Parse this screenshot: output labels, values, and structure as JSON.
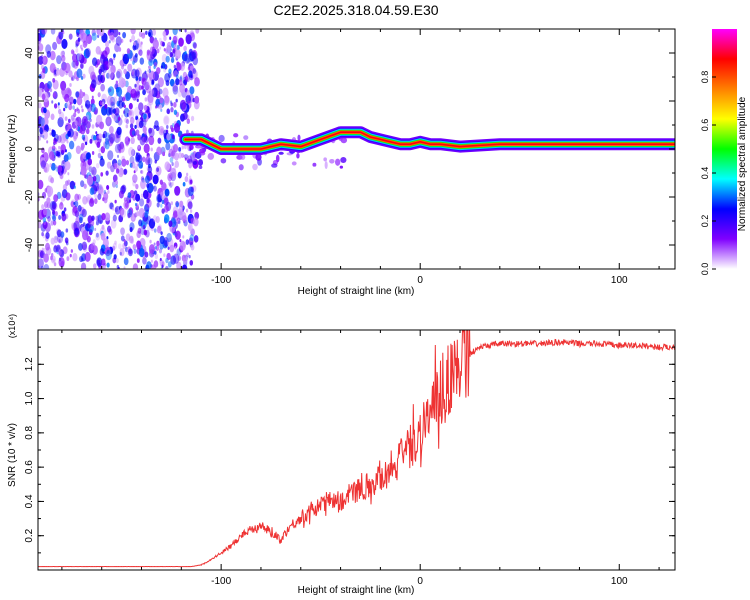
{
  "title": "C2E2.2025.318.04.59.E30",
  "chart_data": [
    {
      "type": "heatmap",
      "name": "spectrogram",
      "xlabel": "Height of straight line (km)",
      "ylabel": "Frequency (Hz)",
      "xlim": [
        -192,
        128
      ],
      "ylim": [
        -50,
        50
      ],
      "x_ticks": [
        -100,
        0,
        100
      ],
      "x_tick_labels": [
        "-100",
        "0",
        "100"
      ],
      "y_ticks": [
        -40,
        -20,
        0,
        20,
        40
      ],
      "y_tick_labels": [
        "-40",
        "-20",
        "0",
        "20",
        "40"
      ],
      "noise_region_x": [
        -192,
        -112
      ],
      "ridge": {
        "x": [
          -118,
          -110,
          -100,
          -90,
          -80,
          -70,
          -60,
          -50,
          -40,
          -30,
          -25,
          -20,
          -15,
          -10,
          -5,
          0,
          5,
          10,
          20,
          40,
          60,
          80,
          100,
          110,
          128
        ],
        "y": [
          4,
          4,
          0,
          0,
          0,
          2,
          1,
          4,
          7,
          7,
          5,
          4,
          3,
          2,
          2,
          3,
          2,
          2,
          1,
          2,
          2,
          2,
          2,
          2,
          2
        ]
      },
      "colorbar": {
        "label": "Normalized spectral amplitude",
        "range": [
          0,
          1
        ],
        "ticks": [
          0.0,
          0.2,
          0.4,
          0.6,
          0.8
        ],
        "tick_labels": [
          "0.0",
          "0.2",
          "0.4",
          "0.6",
          "0.8"
        ],
        "colors": [
          "#ffffff",
          "#8000ff",
          "#0000ff",
          "#00ffff",
          "#00ff00",
          "#ffff00",
          "#ff8000",
          "#ff0000",
          "#ff00ff"
        ]
      }
    },
    {
      "type": "line",
      "name": "snr",
      "xlabel": "Height of straight line (km)",
      "ylabel": "SNR (10 * v/v)",
      "y_multiplier": "(x10⁴)",
      "xlim": [
        -192,
        128
      ],
      "ylim": [
        0,
        1.4
      ],
      "x_ticks": [
        -100,
        0,
        100
      ],
      "x_tick_labels": [
        "-100",
        "0",
        "100"
      ],
      "y_ticks": [
        0.2,
        0.4,
        0.6,
        0.8,
        1.0,
        1.2
      ],
      "y_tick_labels": [
        "0.2",
        "0.4",
        "0.6",
        "0.8",
        "1.0",
        "1.2"
      ],
      "color": "#ee3333",
      "series": [
        {
          "name": "SNR",
          "x": [
            -192,
            -160,
            -130,
            -115,
            -110,
            -105,
            -100,
            -95,
            -90,
            -85,
            -80,
            -75,
            -70,
            -65,
            -60,
            -55,
            -50,
            -45,
            -40,
            -35,
            -30,
            -25,
            -20,
            -15,
            -10,
            -5,
            0,
            5,
            10,
            15,
            20,
            25,
            30,
            40,
            50,
            60,
            70,
            80,
            90,
            100,
            110,
            120,
            128
          ],
          "y": [
            0.02,
            0.02,
            0.02,
            0.02,
            0.03,
            0.06,
            0.1,
            0.14,
            0.2,
            0.24,
            0.26,
            0.22,
            0.18,
            0.26,
            0.3,
            0.34,
            0.38,
            0.42,
            0.4,
            0.44,
            0.48,
            0.5,
            0.54,
            0.6,
            0.66,
            0.72,
            0.8,
            0.92,
            1.0,
            1.12,
            1.2,
            1.26,
            1.3,
            1.32,
            1.32,
            1.32,
            1.33,
            1.32,
            1.32,
            1.31,
            1.31,
            1.3,
            1.3
          ]
        }
      ]
    }
  ]
}
